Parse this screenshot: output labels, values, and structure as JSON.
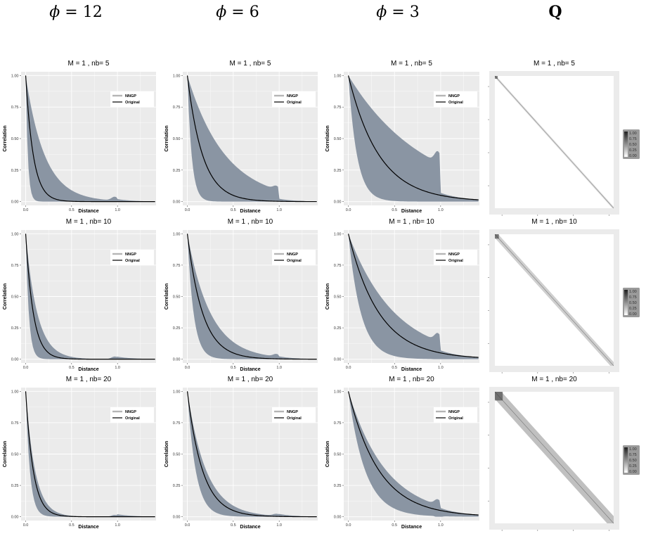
{
  "column_headers": [
    {
      "phi_symbol": "ϕ",
      "eq": " = 12"
    },
    {
      "phi_symbol": "ϕ",
      "eq": " = 6"
    },
    {
      "phi_symbol": "ϕ",
      "eq": " = 3"
    },
    {
      "label": "Q"
    }
  ],
  "colors": {
    "panel_bg": "#ebebeb",
    "grid": "#ffffff",
    "band": "#8a95a3",
    "curve": "#000000",
    "legend_nngp": "#b5b5b5"
  },
  "chart_data": {
    "type": "facet-grid",
    "rows": [
      {
        "title": "M =  1 , nb= 5",
        "nb": 5
      },
      {
        "title": "M =  1 , nb= 10",
        "nb": 10
      },
      {
        "title": "M =  1 , nb= 20",
        "nb": 20
      }
    ],
    "correlation_panels": {
      "xlabel": "Distance",
      "ylabel": "Correlation",
      "xlim": [
        -0.05,
        1.42
      ],
      "ylim": [
        -0.03,
        1.03
      ],
      "x_ticks": [
        "0.0",
        "0.5",
        "1.0"
      ],
      "y_ticks": [
        "0.00",
        "0.25",
        "0.50",
        "0.75",
        "1.00"
      ],
      "legend": [
        "NNGP",
        "Original"
      ],
      "legend_position": "top-right",
      "phi": [
        12,
        6,
        3
      ],
      "max_distance": 1.41
    },
    "q_panels": {
      "colorbar_ticks": [
        "1.00",
        "0.75",
        "0.50",
        "0.25",
        "0.00"
      ],
      "band_halfwidth": [
        0.012,
        0.028,
        0.055
      ]
    }
  }
}
